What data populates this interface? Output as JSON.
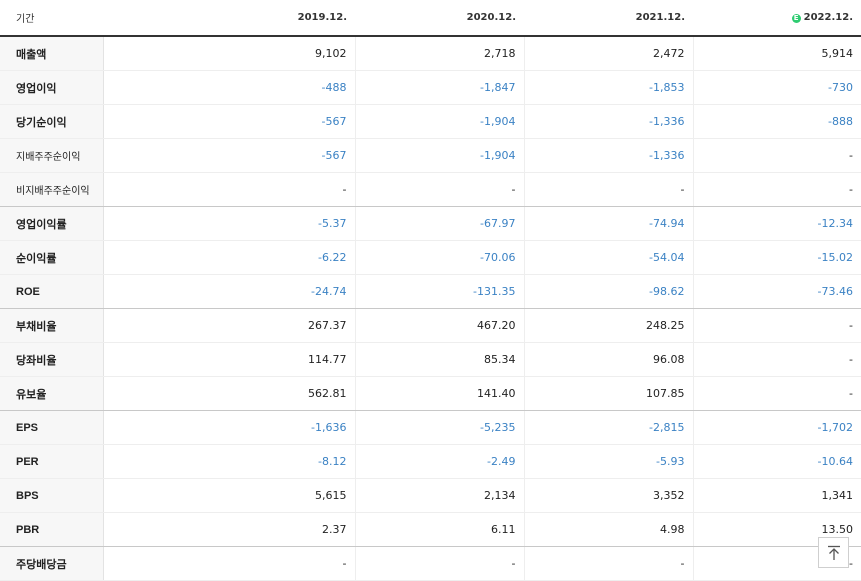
{
  "header": {
    "label": "기간",
    "periods": [
      "2019.12.",
      "2020.12.",
      "2021.12.",
      "2022.12."
    ],
    "estimate_badge": "E"
  },
  "rows": [
    {
      "label": "매출액",
      "values": [
        "9,102",
        "2,718",
        "2,472",
        "5,914"
      ]
    },
    {
      "label": "영업이익",
      "values": [
        "-488",
        "-1,847",
        "-1,853",
        "-730"
      ]
    },
    {
      "label": "당기순이익",
      "values": [
        "-567",
        "-1,904",
        "-1,336",
        "-888"
      ]
    },
    {
      "label": "지배주주순이익",
      "values": [
        "-567",
        "-1,904",
        "-1,336",
        "-"
      ]
    },
    {
      "label": "비지배주주순이익",
      "values": [
        "-",
        "-",
        "-",
        "-"
      ]
    },
    {
      "label": "영업이익률",
      "values": [
        "-5.37",
        "-67.97",
        "-74.94",
        "-12.34"
      ]
    },
    {
      "label": "순이익률",
      "values": [
        "-6.22",
        "-70.06",
        "-54.04",
        "-15.02"
      ]
    },
    {
      "label": "ROE",
      "values": [
        "-24.74",
        "-131.35",
        "-98.62",
        "-73.46"
      ]
    },
    {
      "label": "부채비율",
      "values": [
        "267.37",
        "467.20",
        "248.25",
        "-"
      ]
    },
    {
      "label": "당좌비율",
      "values": [
        "114.77",
        "85.34",
        "96.08",
        "-"
      ]
    },
    {
      "label": "유보율",
      "values": [
        "562.81",
        "141.40",
        "107.85",
        "-"
      ]
    },
    {
      "label": "EPS",
      "values": [
        "-1,636",
        "-5,235",
        "-2,815",
        "-1,702"
      ]
    },
    {
      "label": "PER",
      "values": [
        "-8.12",
        "-2.49",
        "-5.93",
        "-10.64"
      ]
    },
    {
      "label": "BPS",
      "values": [
        "5,615",
        "2,134",
        "3,352",
        "1,341"
      ]
    },
    {
      "label": "PBR",
      "values": [
        "2.37",
        "6.11",
        "4.98",
        "13.50"
      ]
    },
    {
      "label": "주당배당금",
      "values": [
        "-",
        "-",
        "-",
        "-"
      ]
    }
  ],
  "colors": {
    "negative": "#3b82c4",
    "positive": "#222222",
    "estimate_badge": "#2ecc71"
  },
  "icons": {
    "scroll_top": "arrow-up-to-line-icon"
  }
}
